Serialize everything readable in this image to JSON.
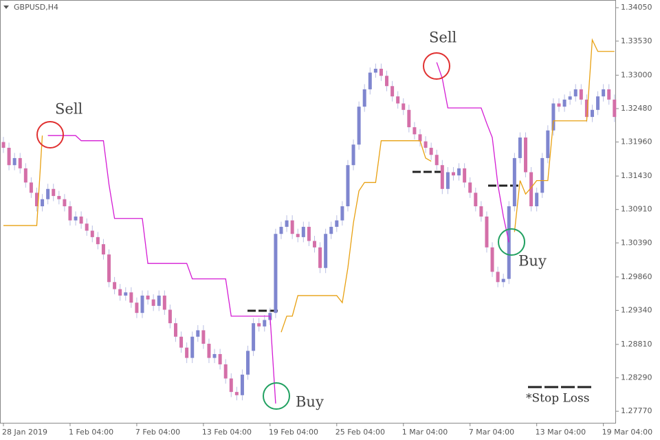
{
  "chart_data": {
    "type": "candlestick",
    "title": "GBPUSD,H4",
    "categories": [
      "28 Jan 2019",
      null,
      null,
      null,
      null,
      null,
      null,
      null,
      null,
      null,
      null,
      null,
      "1 Feb 04:00",
      null,
      null,
      null,
      null,
      null,
      null,
      null,
      null,
      null,
      null,
      null,
      "7 Feb 04:00",
      null,
      null,
      null,
      null,
      null,
      null,
      null,
      null,
      null,
      null,
      null,
      "13 Feb 04:00",
      null,
      null,
      null,
      null,
      null,
      null,
      null,
      null,
      null,
      null,
      null,
      "19 Feb 04:00",
      null,
      null,
      null,
      null,
      null,
      null,
      null,
      null,
      null,
      null,
      null,
      "25 Feb 04:00",
      null,
      null,
      null,
      null,
      null,
      null,
      null,
      null,
      null,
      null,
      null,
      "1 Mar 04:00",
      null,
      null,
      null,
      null,
      null,
      null,
      null,
      null,
      null,
      null,
      null,
      "7 Mar 04:00",
      null,
      null,
      null,
      null,
      null,
      null,
      null,
      null,
      null,
      null,
      null,
      "13 Mar 04:00",
      null,
      null,
      null,
      null,
      null,
      null,
      null,
      null,
      null,
      null,
      null,
      "19 Mar 04:00",
      null,
      null
    ],
    "open": [
      1.3196,
      1.3187,
      1.316,
      1.3171,
      1.3155,
      1.3133,
      1.3117,
      1.3096,
      1.3107,
      1.3123,
      1.3112,
      1.3107,
      1.3096,
      1.3074,
      1.308,
      1.3069,
      1.3058,
      1.3048,
      1.3037,
      1.3021,
      1.2978,
      1.2967,
      1.2957,
      1.2962,
      1.2946,
      1.293,
      1.2957,
      1.2951,
      1.2941,
      1.2957,
      1.2935,
      1.2914,
      1.2893,
      1.2876,
      1.286,
      1.2893,
      1.2903,
      1.2882,
      1.286,
      1.2866,
      1.285,
      1.2828,
      1.2807,
      1.2802,
      1.2834,
      1.2871,
      1.2914,
      1.2909,
      1.2919,
      1.293,
      1.3053,
      1.3064,
      1.3074,
      1.3053,
      1.3048,
      1.3064,
      1.3042,
      1.3032,
      1.3,
      1.3053,
      1.3064,
      1.3074,
      1.3096,
      1.316,
      1.3192,
      1.3251,
      1.3278,
      1.3304,
      1.331,
      1.3299,
      1.3283,
      1.3267,
      1.3256,
      1.3246,
      1.3219,
      1.3208,
      1.3197,
      1.3187,
      1.3176,
      1.316,
      1.3123,
      1.3149,
      1.3144,
      1.3155,
      1.3133,
      1.3117,
      1.3096,
      1.308,
      1.3032,
      1.2994,
      1.2978,
      1.2983,
      1.3096,
      1.3171,
      1.3203,
      1.3149,
      1.3096,
      1.3117,
      1.3171,
      1.3214,
      1.3256,
      1.3251,
      1.3262,
      1.3267,
      1.3278,
      1.3262,
      1.3235,
      1.3246,
      1.3267,
      1.3278,
      1.3262
    ],
    "high": [
      1.3204,
      1.3195,
      1.3179,
      1.3179,
      1.3163,
      1.3141,
      1.3125,
      1.3115,
      1.3131,
      1.3131,
      1.312,
      1.3115,
      1.3104,
      1.3088,
      1.3088,
      1.3077,
      1.3066,
      1.3056,
      1.3045,
      1.3029,
      1.2986,
      1.2975,
      1.297,
      1.297,
      1.2954,
      1.2965,
      1.2965,
      1.2959,
      1.2965,
      1.2965,
      1.2943,
      1.2922,
      1.2901,
      1.2884,
      1.2901,
      1.2911,
      1.2911,
      1.289,
      1.2874,
      1.2874,
      1.2858,
      1.2836,
      1.2815,
      1.2842,
      1.2879,
      1.2922,
      1.2922,
      1.2927,
      1.2938,
      1.3061,
      1.3072,
      1.3082,
      1.3082,
      1.3061,
      1.3072,
      1.3072,
      1.305,
      1.304,
      1.3061,
      1.3072,
      1.3082,
      1.3104,
      1.3168,
      1.32,
      1.3259,
      1.3286,
      1.3312,
      1.3318,
      1.3318,
      1.3307,
      1.3291,
      1.3275,
      1.3264,
      1.3254,
      1.3227,
      1.3216,
      1.3205,
      1.3195,
      1.3184,
      1.3168,
      1.3157,
      1.3157,
      1.3163,
      1.3163,
      1.3141,
      1.3125,
      1.3104,
      1.3088,
      1.304,
      1.3002,
      1.2991,
      1.3104,
      1.3179,
      1.3211,
      1.3211,
      1.3157,
      1.3125,
      1.3179,
      1.3222,
      1.3264,
      1.3264,
      1.327,
      1.3275,
      1.3286,
      1.3286,
      1.327,
      1.3254,
      1.3275,
      1.3286,
      1.3286,
      1.327
    ],
    "low": [
      1.3179,
      1.3152,
      1.3152,
      1.3147,
      1.3125,
      1.3109,
      1.3088,
      1.3088,
      1.3099,
      1.3104,
      1.3099,
      1.3088,
      1.3066,
      1.3066,
      1.3061,
      1.305,
      1.304,
      1.3029,
      1.3013,
      1.297,
      1.2959,
      1.2949,
      1.2949,
      1.2938,
      1.2922,
      1.2922,
      1.2943,
      1.2933,
      1.2933,
      1.2927,
      1.2906,
      1.2885,
      1.2868,
      1.2852,
      1.2852,
      1.2885,
      1.2874,
      1.2852,
      1.2852,
      1.2842,
      1.282,
      1.2799,
      1.2794,
      1.2794,
      1.2826,
      1.2863,
      1.2901,
      1.2901,
      1.2911,
      1.2922,
      1.3045,
      1.3056,
      1.3045,
      1.304,
      1.304,
      1.3034,
      1.3024,
      1.2992,
      1.2992,
      1.3045,
      1.3056,
      1.3066,
      1.3088,
      1.3152,
      1.3184,
      1.3243,
      1.327,
      1.3296,
      1.3291,
      1.3275,
      1.3259,
      1.3248,
      1.3238,
      1.3211,
      1.32,
      1.3189,
      1.3179,
      1.3168,
      1.3152,
      1.3115,
      1.3115,
      1.3136,
      1.3136,
      1.3125,
      1.3109,
      1.3088,
      1.3072,
      1.3024,
      1.2986,
      1.297,
      1.297,
      1.2975,
      1.3088,
      1.3163,
      1.3141,
      1.3088,
      1.3088,
      1.3109,
      1.3163,
      1.3206,
      1.3243,
      1.3243,
      1.3254,
      1.3259,
      1.3254,
      1.3227,
      1.3227,
      1.3238,
      1.3259,
      1.3254,
      1.3227
    ],
    "close": [
      1.3187,
      1.316,
      1.3171,
      1.3155,
      1.3133,
      1.3117,
      1.3096,
      1.3107,
      1.3123,
      1.3112,
      1.3107,
      1.3096,
      1.3074,
      1.308,
      1.3069,
      1.3058,
      1.3048,
      1.3037,
      1.3021,
      1.2978,
      1.2967,
      1.2957,
      1.2962,
      1.2946,
      1.293,
      1.2957,
      1.2951,
      1.2941,
      1.2957,
      1.2935,
      1.2914,
      1.2893,
      1.2876,
      1.286,
      1.2893,
      1.2903,
      1.2882,
      1.286,
      1.2866,
      1.285,
      1.2828,
      1.2807,
      1.2802,
      1.2834,
      1.2871,
      1.2914,
      1.2909,
      1.2919,
      1.293,
      1.3053,
      1.3064,
      1.3074,
      1.3053,
      1.3048,
      1.3064,
      1.3042,
      1.3032,
      1.3,
      1.3053,
      1.3064,
      1.3074,
      1.3096,
      1.316,
      1.3192,
      1.3251,
      1.3278,
      1.3304,
      1.331,
      1.3299,
      1.3283,
      1.3267,
      1.3256,
      1.3246,
      1.3219,
      1.3208,
      1.3197,
      1.3187,
      1.3176,
      1.316,
      1.3123,
      1.3149,
      1.3144,
      1.3155,
      1.3133,
      1.3117,
      1.3096,
      1.308,
      1.3032,
      1.2994,
      1.2978,
      1.2983,
      1.3096,
      1.3171,
      1.3203,
      1.3149,
      1.3096,
      1.3117,
      1.3171,
      1.3214,
      1.3256,
      1.3251,
      1.3262,
      1.3267,
      1.3278,
      1.3262,
      1.3235,
      1.3246,
      1.3267,
      1.3278,
      1.3262,
      1.3235
    ],
    "up_color": "#7f86cf",
    "down_color": "#d46fa8",
    "wick_color": "#b9bee3",
    "series": [
      {
        "color": "#d41bd4",
        "values": [
          null,
          null,
          null,
          null,
          null,
          null,
          null,
          null,
          1.3206,
          1.3206,
          1.3206,
          1.3206,
          1.3206,
          1.3206,
          1.3198,
          1.3198,
          1.3198,
          1.3198,
          1.3198,
          1.313,
          1.3077,
          1.3077,
          1.3077,
          1.3077,
          1.3077,
          1.3077,
          1.3007,
          1.3007,
          1.3007,
          1.3007,
          1.3007,
          1.3007,
          1.3007,
          1.3007,
          1.2983,
          1.2983,
          1.2983,
          1.2983,
          1.2983,
          1.2983,
          1.2983,
          1.2925,
          1.2925,
          1.2925,
          1.2925,
          1.2925,
          1.2925,
          1.2925,
          1.2925,
          1.2789,
          null,
          null,
          null,
          null,
          null,
          null,
          null,
          null,
          null,
          null,
          null,
          null,
          null,
          null,
          null,
          null,
          null,
          null,
          null,
          null,
          null,
          null,
          null,
          null,
          null,
          null,
          null,
          null,
          1.332,
          1.3295,
          1.3249,
          1.3249,
          1.3249,
          1.3249,
          1.3249,
          1.3249,
          1.3249,
          1.3225,
          1.3203,
          1.313,
          1.308,
          1.304,
          null,
          null,
          null,
          null,
          null,
          null,
          null,
          null,
          null,
          null,
          null,
          null,
          null,
          null,
          null,
          null,
          null,
          null,
          null
        ]
      },
      {
        "color": "#e8a010",
        "values": [
          1.3066,
          1.3066,
          1.3066,
          1.3066,
          1.3066,
          1.3066,
          1.3066,
          1.3206,
          null,
          null,
          null,
          null,
          null,
          null,
          null,
          null,
          null,
          null,
          null,
          null,
          null,
          null,
          null,
          null,
          null,
          null,
          null,
          null,
          null,
          null,
          null,
          null,
          null,
          null,
          null,
          null,
          null,
          null,
          null,
          null,
          null,
          null,
          null,
          null,
          null,
          null,
          null,
          null,
          null,
          null,
          1.29,
          1.2925,
          1.2925,
          1.2957,
          1.2957,
          1.2957,
          1.2957,
          1.2957,
          1.2957,
          1.2957,
          1.2957,
          1.2946,
          1.3,
          1.307,
          1.312,
          1.3133,
          1.3133,
          1.3133,
          1.3198,
          1.3198,
          1.3198,
          1.3198,
          1.3198,
          1.3198,
          1.3198,
          1.3198,
          1.3171,
          1.3166,
          null,
          null,
          null,
          null,
          null,
          null,
          null,
          null,
          null,
          null,
          null,
          null,
          null,
          null,
          1.3056,
          1.3136,
          1.3115,
          1.3125,
          1.3136,
          1.3136,
          1.3136,
          1.3229,
          1.3229,
          1.3229,
          1.3229,
          1.3229,
          1.3229,
          1.3229,
          1.3355,
          1.3337,
          1.3337,
          1.3337,
          1.3337
        ]
      }
    ],
    "ylim": [
      1.2759,
      1.3417
    ],
    "yticks": [
      {
        "value": 1.3405,
        "label": "1.34050"
      },
      {
        "value": 1.3353,
        "label": "1.33530"
      },
      {
        "value": 1.33,
        "label": "1.33000"
      },
      {
        "value": 1.3248,
        "label": "1.32480"
      },
      {
        "value": 1.3196,
        "label": "1.31960"
      },
      {
        "value": 1.3143,
        "label": "1.31430"
      },
      {
        "value": 1.3091,
        "label": "1.30910"
      },
      {
        "value": 1.3039,
        "label": "1.30390"
      },
      {
        "value": 1.2986,
        "label": "1.29860"
      },
      {
        "value": 1.2934,
        "label": "1.29340"
      },
      {
        "value": 1.2881,
        "label": "1.28810"
      },
      {
        "value": 1.2829,
        "label": "1.28290"
      },
      {
        "value": 1.2777,
        "label": "1.27770"
      }
    ],
    "annotations": [
      "Sell",
      "Sell",
      "Buy",
      "Buy"
    ],
    "note": "*Stop Loss"
  }
}
